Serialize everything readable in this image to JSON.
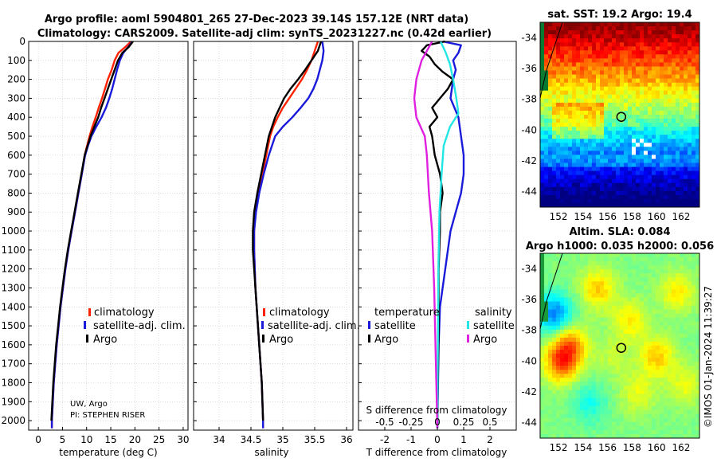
{
  "title": {
    "line1": "Argo profile: aoml 5904801_265 27-Dec-2023 39.14S 157.12E (NRT data)",
    "line2": "Climatology: CARS2009. Satellite-adj clim: synTS_20231227.nc (0.42d earlier)"
  },
  "credit": {
    "institution": "UW, Argo",
    "pi": "PI: STEPHEN RISER"
  },
  "timestamp": "©IMOS 01-Jan-2024 11:39:27",
  "colors": {
    "climatology": "#ff2200",
    "satellite": "#1a1adb",
    "argo": "#000000",
    "sat_sal": "#22e5e5",
    "argo_sal": "#e020e0"
  },
  "chart_data": [
    {
      "type": "line",
      "name": "temperature",
      "xlabel": "temperature (deg C)",
      "xlim": [
        -2,
        31
      ],
      "xticks": [
        0,
        5,
        10,
        15,
        20,
        25,
        30
      ],
      "ylim": [
        0,
        2050
      ],
      "yticks": [
        0,
        100,
        200,
        300,
        400,
        500,
        600,
        700,
        800,
        900,
        1000,
        1100,
        1200,
        1300,
        1400,
        1500,
        1600,
        1700,
        1800,
        1900,
        2000
      ],
      "legend": [
        "climatology",
        "satellite-adj. clim.",
        "Argo"
      ],
      "series": [
        {
          "name": "climatology",
          "color": "#ff2200",
          "points": [
            [
              19.2,
              0
            ],
            [
              18.0,
              30
            ],
            [
              16.6,
              60
            ],
            [
              15.8,
              100
            ],
            [
              15.2,
              150
            ],
            [
              14.4,
              200
            ],
            [
              13.8,
              250
            ],
            [
              13.2,
              300
            ],
            [
              12.5,
              350
            ],
            [
              11.9,
              400
            ],
            [
              11.2,
              450
            ],
            [
              10.6,
              500
            ],
            [
              10.1,
              550
            ],
            [
              9.6,
              600
            ],
            [
              9.0,
              700
            ],
            [
              8.3,
              800
            ],
            [
              7.6,
              900
            ],
            [
              6.9,
              1000
            ],
            [
              6.2,
              1100
            ],
            [
              5.6,
              1200
            ],
            [
              5.1,
              1300
            ],
            [
              4.6,
              1400
            ],
            [
              4.2,
              1500
            ],
            [
              3.8,
              1600
            ],
            [
              3.5,
              1700
            ],
            [
              3.2,
              1800
            ],
            [
              3.0,
              1900
            ],
            [
              2.8,
              2000
            ],
            [
              2.8,
              2040
            ]
          ]
        },
        {
          "name": "satellite-adj. clim.",
          "color": "#1a1adb",
          "points": [
            [
              19.5,
              0
            ],
            [
              18.6,
              30
            ],
            [
              17.6,
              60
            ],
            [
              16.9,
              100
            ],
            [
              16.3,
              150
            ],
            [
              15.8,
              200
            ],
            [
              15.3,
              250
            ],
            [
              14.7,
              300
            ],
            [
              14.0,
              350
            ],
            [
              13.1,
              400
            ],
            [
              12.0,
              450
            ],
            [
              11.0,
              500
            ],
            [
              10.3,
              550
            ],
            [
              9.7,
              600
            ],
            [
              9.0,
              700
            ],
            [
              8.3,
              800
            ],
            [
              7.6,
              900
            ],
            [
              6.9,
              1000
            ],
            [
              6.2,
              1100
            ],
            [
              5.6,
              1200
            ],
            [
              5.1,
              1300
            ],
            [
              4.6,
              1400
            ],
            [
              4.2,
              1500
            ],
            [
              3.8,
              1600
            ],
            [
              3.5,
              1700
            ],
            [
              3.2,
              1800
            ],
            [
              3.0,
              1900
            ],
            [
              2.8,
              2000
            ],
            [
              2.8,
              2040
            ]
          ]
        },
        {
          "name": "Argo",
          "color": "#000000",
          "points": [
            [
              19.6,
              0
            ],
            [
              18.7,
              30
            ],
            [
              17.4,
              60
            ],
            [
              16.5,
              100
            ],
            [
              15.8,
              150
            ],
            [
              15.1,
              200
            ],
            [
              14.4,
              250
            ],
            [
              13.7,
              300
            ],
            [
              13.0,
              350
            ],
            [
              12.4,
              400
            ],
            [
              11.6,
              450
            ],
            [
              10.8,
              500
            ],
            [
              10.2,
              550
            ],
            [
              9.6,
              600
            ],
            [
              8.9,
              700
            ],
            [
              8.2,
              800
            ],
            [
              7.5,
              900
            ],
            [
              6.8,
              1000
            ],
            [
              6.1,
              1100
            ],
            [
              5.5,
              1200
            ],
            [
              5.0,
              1300
            ],
            [
              4.5,
              1400
            ],
            [
              4.1,
              1500
            ],
            [
              3.7,
              1600
            ],
            [
              3.4,
              1700
            ],
            [
              3.1,
              1800
            ],
            [
              2.9,
              1900
            ],
            [
              2.7,
              2000
            ]
          ]
        }
      ]
    },
    {
      "type": "line",
      "name": "salinity",
      "xlabel": "salinity",
      "xlim": [
        33.6,
        36.1
      ],
      "xticks": [
        34,
        34.5,
        35,
        35.5,
        36
      ],
      "ylim": [
        0,
        2050
      ],
      "legend": [
        "climatology",
        "satellite-adj. clim.",
        "Argo"
      ],
      "series": [
        {
          "name": "climatology",
          "color": "#ff2200",
          "points": [
            [
              35.55,
              0
            ],
            [
              35.5,
              50
            ],
            [
              35.45,
              100
            ],
            [
              35.38,
              150
            ],
            [
              35.3,
              200
            ],
            [
              35.2,
              250
            ],
            [
              35.1,
              300
            ],
            [
              35.0,
              350
            ],
            [
              34.92,
              400
            ],
            [
              34.85,
              450
            ],
            [
              34.8,
              500
            ],
            [
              34.74,
              600
            ],
            [
              34.68,
              700
            ],
            [
              34.62,
              800
            ],
            [
              34.57,
              900
            ],
            [
              34.55,
              1000
            ],
            [
              34.55,
              1100
            ],
            [
              34.56,
              1200
            ],
            [
              34.57,
              1300
            ],
            [
              34.59,
              1400
            ],
            [
              34.61,
              1500
            ],
            [
              34.63,
              1600
            ],
            [
              34.65,
              1700
            ],
            [
              34.67,
              1800
            ],
            [
              34.68,
              1900
            ],
            [
              34.69,
              2000
            ],
            [
              34.69,
              2040
            ]
          ]
        },
        {
          "name": "satellite-adj. clim.",
          "color": "#1a1adb",
          "points": [
            [
              35.62,
              0
            ],
            [
              35.64,
              50
            ],
            [
              35.62,
              100
            ],
            [
              35.58,
              150
            ],
            [
              35.54,
              200
            ],
            [
              35.48,
              250
            ],
            [
              35.4,
              300
            ],
            [
              35.28,
              350
            ],
            [
              35.15,
              400
            ],
            [
              35.0,
              450
            ],
            [
              34.88,
              500
            ],
            [
              34.78,
              600
            ],
            [
              34.7,
              700
            ],
            [
              34.63,
              800
            ],
            [
              34.58,
              900
            ],
            [
              34.55,
              1000
            ],
            [
              34.55,
              1100
            ],
            [
              34.56,
              1200
            ],
            [
              34.57,
              1300
            ],
            [
              34.59,
              1400
            ],
            [
              34.61,
              1500
            ],
            [
              34.63,
              1600
            ],
            [
              34.65,
              1700
            ],
            [
              34.67,
              1800
            ],
            [
              34.68,
              1900
            ],
            [
              34.69,
              2000
            ],
            [
              34.69,
              2040
            ]
          ]
        },
        {
          "name": "Argo",
          "color": "#000000",
          "points": [
            [
              35.6,
              0
            ],
            [
              35.55,
              50
            ],
            [
              35.45,
              100
            ],
            [
              35.35,
              150
            ],
            [
              35.24,
              200
            ],
            [
              35.12,
              250
            ],
            [
              35.02,
              300
            ],
            [
              34.95,
              350
            ],
            [
              34.88,
              400
            ],
            [
              34.83,
              450
            ],
            [
              34.78,
              500
            ],
            [
              34.72,
              600
            ],
            [
              34.66,
              700
            ],
            [
              34.6,
              800
            ],
            [
              34.55,
              900
            ],
            [
              34.53,
              1000
            ],
            [
              34.53,
              1100
            ],
            [
              34.55,
              1200
            ],
            [
              34.57,
              1300
            ],
            [
              34.59,
              1400
            ],
            [
              34.61,
              1500
            ],
            [
              34.63,
              1600
            ],
            [
              34.65,
              1700
            ],
            [
              34.67,
              1800
            ],
            [
              34.68,
              1900
            ],
            [
              34.69,
              2000
            ]
          ]
        }
      ]
    },
    {
      "type": "line",
      "name": "difference",
      "xlabel": "T difference from climatology",
      "xlabel_top": "S difference from climatology",
      "xlim": [
        -3,
        3
      ],
      "xticks": [
        -2,
        -1,
        0,
        1,
        2
      ],
      "xticks_top": [
        -0.5,
        -0.25,
        0,
        0.25,
        0.5
      ],
      "ylim": [
        0,
        2050
      ],
      "legend_left_title": "temperature",
      "legend_right_title": "salinity",
      "legend_left": [
        "satellite",
        "Argo"
      ],
      "legend_right": [
        "satellite",
        "Argo"
      ],
      "series": [
        {
          "name": "T satellite",
          "color": "#1a1adb",
          "points": [
            [
              0.2,
              0
            ],
            [
              0.9,
              20
            ],
            [
              0.8,
              60
            ],
            [
              0.6,
              100
            ],
            [
              0.7,
              150
            ],
            [
              0.6,
              200
            ],
            [
              0.5,
              300
            ],
            [
              0.8,
              400
            ],
            [
              0.9,
              500
            ],
            [
              1.0,
              600
            ],
            [
              1.0,
              700
            ],
            [
              0.9,
              800
            ],
            [
              0.7,
              900
            ],
            [
              0.5,
              1000
            ],
            [
              0.3,
              1200
            ],
            [
              0.1,
              1400
            ],
            [
              0.05,
              1600
            ],
            [
              0,
              2040
            ]
          ]
        },
        {
          "name": "T Argo",
          "color": "#000000",
          "points": [
            [
              0.3,
              0
            ],
            [
              -0.4,
              20
            ],
            [
              -0.6,
              50
            ],
            [
              -0.3,
              80
            ],
            [
              -0.1,
              120
            ],
            [
              0.2,
              160
            ],
            [
              0.6,
              200
            ],
            [
              0.4,
              250
            ],
            [
              0.1,
              300
            ],
            [
              -0.2,
              350
            ],
            [
              0.0,
              400
            ],
            [
              -0.3,
              450
            ],
            [
              -0.2,
              500
            ],
            [
              -0.1,
              600
            ],
            [
              0.1,
              700
            ],
            [
              0.2,
              800
            ],
            [
              0.1,
              900
            ],
            [
              0.1,
              1000
            ],
            [
              0.05,
              1200
            ],
            [
              0.05,
              1500
            ],
            [
              0,
              2000
            ]
          ]
        },
        {
          "name": "S satellite",
          "color": "#22e5e5",
          "points": [
            [
              0.03,
              0
            ],
            [
              0.08,
              60
            ],
            [
              0.12,
              120
            ],
            [
              0.15,
              200
            ],
            [
              0.18,
              300
            ],
            [
              0.2,
              380
            ],
            [
              0.12,
              450
            ],
            [
              0.06,
              550
            ],
            [
              0.04,
              700
            ],
            [
              0.02,
              900
            ],
            [
              0.01,
              1200
            ],
            [
              0,
              2040
            ]
          ]
        },
        {
          "name": "S Argo",
          "color": "#e020e0",
          "points": [
            [
              -0.05,
              0
            ],
            [
              -0.1,
              50
            ],
            [
              -0.15,
              100
            ],
            [
              -0.2,
              200
            ],
            [
              -0.22,
              300
            ],
            [
              -0.2,
              400
            ],
            [
              -0.12,
              500
            ],
            [
              -0.1,
              600
            ],
            [
              -0.08,
              800
            ],
            [
              -0.05,
              1000
            ],
            [
              -0.03,
              1300
            ],
            [
              0,
              2040
            ]
          ]
        }
      ]
    },
    {
      "type": "heatmap",
      "name": "satellite SST map",
      "title": "sat. SST: 19.2  Argo: 19.4",
      "lon_range": [
        150.5,
        163.5
      ],
      "lat_range": [
        -45,
        -33
      ],
      "xticks": [
        152,
        154,
        156,
        158,
        160,
        162
      ],
      "yticks": [
        -34,
        -36,
        -38,
        -40,
        -42,
        -44
      ],
      "argo_position": [
        157.12,
        -39.14
      ]
    },
    {
      "type": "heatmap",
      "name": "altimetry SLA map",
      "title": "Altim. SLA: 0.084",
      "subtitle": "Argo h1000: 0.035  h2000: 0.056",
      "lon_range": [
        150.5,
        163.5
      ],
      "lat_range": [
        -45,
        -33
      ],
      "xticks": [
        152,
        154,
        156,
        158,
        160,
        162
      ],
      "yticks": [
        -34,
        -36,
        -38,
        -40,
        -42,
        -44
      ],
      "argo_position": [
        157.12,
        -39.14
      ]
    }
  ]
}
